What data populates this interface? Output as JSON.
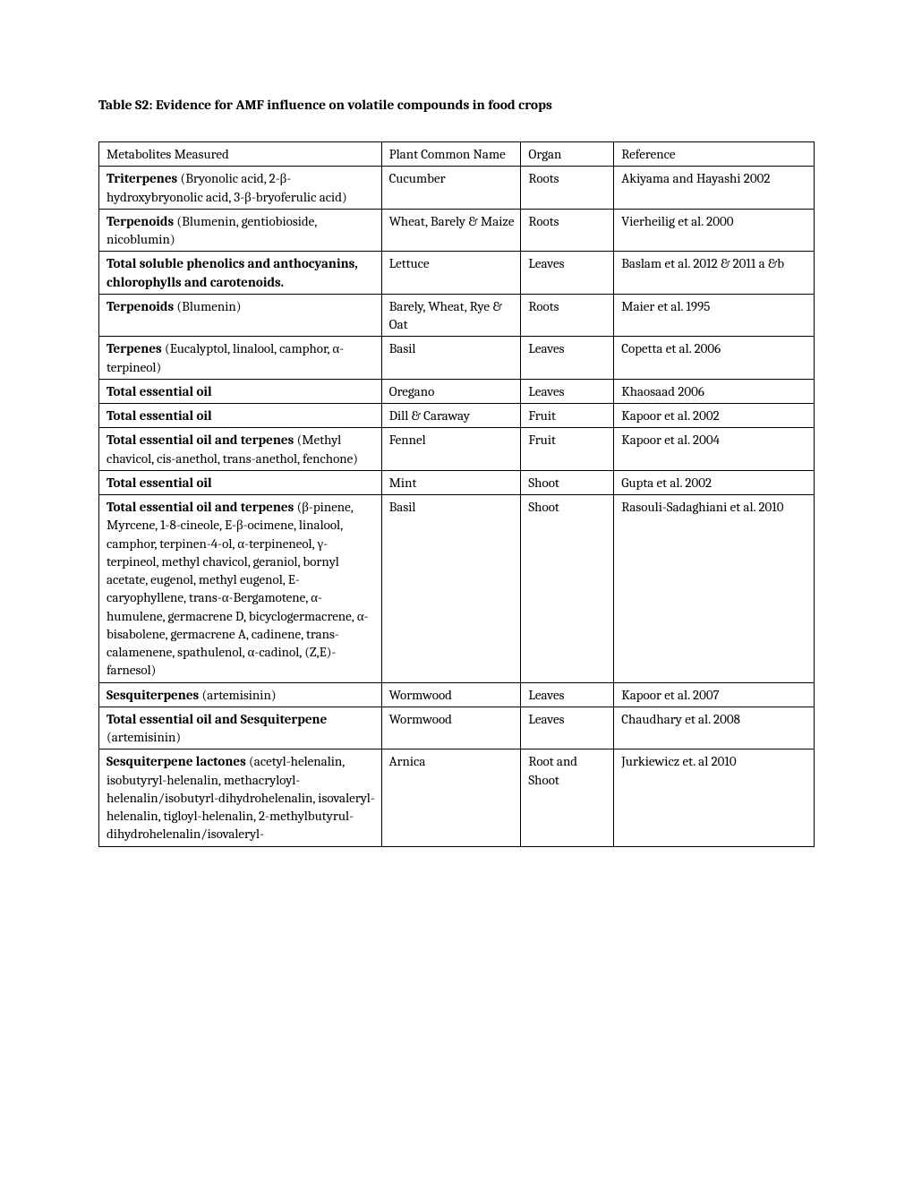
{
  "title": "Table S2:  Evidence for AMF influence on volatile compounds in food crops",
  "header": {
    "metabolites": "Metabolites Measured",
    "plant": "Plant Common Name",
    "organ": "Organ",
    "reference": "Reference"
  },
  "rows": [
    {
      "met_bold": "Triterpenes",
      "met_rest": " (Bryonolic acid, 2-β-hydroxybryonolic acid, 3-β-bryoferulic acid)",
      "plant": "Cucumber",
      "organ": "Roots",
      "ref": "Akiyama and Hayashi 2002"
    },
    {
      "met_bold": "Terpenoids",
      "met_rest": " (Blumenin, gentiobioside, nicoblumin)",
      "plant": "Wheat, Barely & Maize",
      "organ": "Roots",
      "ref": "Vierheilig et al. 2000"
    },
    {
      "met_bold": "Total soluble phenolics and anthocyanins, chlorophylls and carotenoids.",
      "met_rest": "",
      "plant": "Lettuce",
      "organ": "Leaves",
      "ref": "Baslam et al. 2012 & 2011 a &b"
    },
    {
      "met_bold": "Terpenoids",
      "met_rest": " (Blumenin)",
      "plant": "Barely, Wheat, Rye & Oat",
      "organ": "Roots",
      "ref": "Maier et al. 1995"
    },
    {
      "met_bold": "Terpenes",
      "met_rest": " (Eucalyptol, linalool, camphor, α-terpineol)",
      "plant": "Basil",
      "organ": "Leaves",
      "ref": "Copetta et al. 2006"
    },
    {
      "met_bold": "Total essential oil",
      "met_rest": "",
      "plant": "Oregano",
      "organ": "Leaves",
      "ref": "Khaosaad 2006"
    },
    {
      "met_bold": "Total essential oil",
      "met_rest": "",
      "plant": "Dill & Caraway",
      "organ": "Fruit",
      "ref": "Kapoor et al. 2002"
    },
    {
      "met_bold": "Total essential oil and terpenes",
      "met_rest": " (Methyl chavicol, cis-anethol, trans-anethol, fenchone)",
      "plant": "Fennel",
      "organ": "Fruit",
      "ref": "Kapoor et al. 2004"
    },
    {
      "met_bold": "Total essential oil",
      "met_rest": "",
      "plant": "Mint",
      "organ": "Shoot",
      "ref": "Gupta et al. 2002"
    },
    {
      "met_bold": "Total essential oil and terpenes",
      "met_rest": " (β-pinene, Myrcene, 1-8-cineole, E-β-ocimene, linalool, camphor, terpinen-4-ol, α-terpineneol, γ-terpineol, methyl chavicol, geraniol, bornyl acetate, eugenol, methyl eugenol, E-caryophyllene, trans-α-Bergamotene, α-humulene, germacrene D, bicyclogermacrene, α-bisabolene, germacrene A, cadinene, trans-calamenene, spathulenol, α-cadinol, (Z,E)-farnesol)",
      "plant": "Basil",
      "organ": "Shoot",
      "ref": "Rasouli-Sadaghiani et al. 2010"
    },
    {
      "met_bold": "Sesquiterpenes",
      "met_rest": " (artemisinin)",
      "plant": "Wormwood",
      "organ": "Leaves",
      "ref": "Kapoor et al. 2007"
    },
    {
      "met_bold_1": "Total essential oil and Sesquiterpene",
      "met_rest_1": " (artemisinin)",
      "plant": "Wormwood",
      "organ": "Leaves",
      "ref": "Chaudhary et al. 2008",
      "two_line_bold": true
    },
    {
      "met_bold": "Sesquiterpene lactones",
      "met_rest": " (acetyl-helenalin, isobutyryl-helenalin, methacryloyl-helenalin/isobutyrl-dihydrohelenalin, isovaleryl-helenalin, tigloyl-helenalin, 2-methylbutyrul-dihydrohelenalin/isovaleryl-",
      "plant": "Arnica",
      "organ": "Root and Shoot",
      "ref": "Jurkiewicz et. al 2010"
    }
  ]
}
